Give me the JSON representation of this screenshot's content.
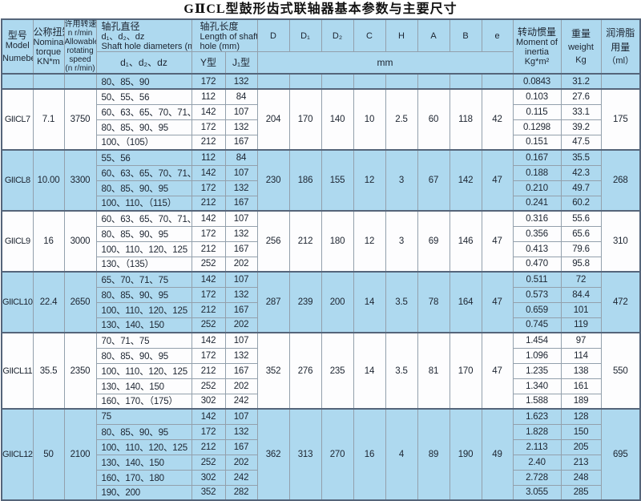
{
  "title": "GⅡCL型鼓形齿式联轴器基本参数与主要尺寸",
  "header": {
    "model": {
      "zh": "型号",
      "en1": "Model",
      "en2": "Numeber"
    },
    "torque": {
      "zh": "公称扭矩",
      "en1": "Nominal",
      "en2": "torque",
      "unit": "KN*m"
    },
    "speed": {
      "zh": "许用转速",
      "l2": "n r/min",
      "l3": "Allowable",
      "l4": "rotating",
      "l5": "speed",
      "l6": "(n r/min)"
    },
    "diameters": {
      "zh": "轴孔直径",
      "sub": "d₁、d₂、dz",
      "en": "Shaft hole diameters (mm)",
      "subrow": "d₁、d₂、dz"
    },
    "length": {
      "zh": "轴孔长度",
      "en1": "Length of shaft",
      "en2": "hole (mm)",
      "y": "Y型",
      "j": "J₁型"
    },
    "dims": [
      "D",
      "D₁",
      "D₂",
      "C",
      "H",
      "A",
      "B",
      "e"
    ],
    "mm": "mm",
    "inertia": {
      "zh": "转动惯量",
      "en1": "Moment of",
      "en2": "inertia",
      "unit": "Kg*m²"
    },
    "weight": {
      "zh": "重量",
      "en": "weight",
      "unit": "Kg"
    },
    "grease": {
      "zh": "润滑脂",
      "zh2": "用量",
      "unit": "（ml）"
    }
  },
  "groups": [
    {
      "model": "",
      "torque": "",
      "speed": "",
      "D": "",
      "D1": "",
      "D2": "",
      "C": "",
      "H": "",
      "A": "",
      "B": "",
      "e": "",
      "grease": "",
      "shaded": true,
      "rows": [
        {
          "d": "80、85、90",
          "y": "172",
          "j": "132",
          "inertia": "0.0843",
          "weight": "31.2"
        }
      ]
    },
    {
      "model": "GIICL7",
      "torque": "7.1",
      "speed": "3750",
      "D": "204",
      "D1": "170",
      "D2": "140",
      "C": "10",
      "H": "2.5",
      "A": "60",
      "B": "118",
      "e": "42",
      "grease": "175",
      "shaded": false,
      "rows": [
        {
          "d": "50、55、56",
          "y": "112",
          "j": "84",
          "inertia": "0.103",
          "weight": "27.6"
        },
        {
          "d": "60、63、65、70、71、75",
          "y": "142",
          "j": "107",
          "inertia": "0.115",
          "weight": "33.1"
        },
        {
          "d": "80、85、90、95",
          "y": "172",
          "j": "132",
          "inertia": "0.1298",
          "weight": "39.2"
        },
        {
          "d": "100、（105）",
          "y": "212",
          "j": "167",
          "inertia": "0.151",
          "weight": "47.5"
        }
      ]
    },
    {
      "model": "GIICL8",
      "torque": "10.00",
      "speed": "3300",
      "D": "230",
      "D1": "186",
      "D2": "155",
      "C": "12",
      "H": "3",
      "A": "67",
      "B": "142",
      "e": "47",
      "grease": "268",
      "shaded": true,
      "rows": [
        {
          "d": "55、56",
          "y": "112",
          "j": "84",
          "inertia": "0.167",
          "weight": "35.5"
        },
        {
          "d": "60、63、65、70、71、75",
          "y": "142",
          "j": "107",
          "inertia": "0.188",
          "weight": "42.3"
        },
        {
          "d": "80、85、90、95",
          "y": "172",
          "j": "132",
          "inertia": "0.210",
          "weight": "49.7"
        },
        {
          "d": "100、110、（115）",
          "y": "212",
          "j": "167",
          "inertia": "0.241",
          "weight": "60.2"
        }
      ]
    },
    {
      "model": "GIICL9",
      "torque": "16",
      "speed": "3000",
      "D": "256",
      "D1": "212",
      "D2": "180",
      "C": "12",
      "H": "3",
      "A": "69",
      "B": "146",
      "e": "47",
      "grease": "310",
      "shaded": false,
      "rows": [
        {
          "d": "60、63、65、70、71、75",
          "y": "142",
          "j": "107",
          "inertia": "0.316",
          "weight": "55.6"
        },
        {
          "d": "80、85、90、95",
          "y": "172",
          "j": "132",
          "inertia": "0.356",
          "weight": "65.6"
        },
        {
          "d": "100、110、120、125",
          "y": "212",
          "j": "167",
          "inertia": "0.413",
          "weight": "79.6"
        },
        {
          "d": "130、（135）",
          "y": "252",
          "j": "202",
          "inertia": "0.470",
          "weight": "95.8"
        }
      ]
    },
    {
      "model": "GIICL10",
      "torque": "22.4",
      "speed": "2650",
      "D": "287",
      "D1": "239",
      "D2": "200",
      "C": "14",
      "H": "3.5",
      "A": "78",
      "B": "164",
      "e": "47",
      "grease": "472",
      "shaded": true,
      "rows": [
        {
          "d": "65、70、71、75",
          "y": "142",
          "j": "107",
          "inertia": "0.511",
          "weight": "72"
        },
        {
          "d": "80、85、90、95",
          "y": "172",
          "j": "132",
          "inertia": "0.573",
          "weight": "84.4"
        },
        {
          "d": "100、110、120、125",
          "y": "212",
          "j": "167",
          "inertia": "0.659",
          "weight": "101"
        },
        {
          "d": "130、140、150",
          "y": "252",
          "j": "202",
          "inertia": "0.745",
          "weight": "119"
        }
      ]
    },
    {
      "model": "GIICL11",
      "torque": "35.5",
      "speed": "2350",
      "D": "352",
      "D1": "276",
      "D2": "235",
      "C": "14",
      "H": "3.5",
      "A": "81",
      "B": "170",
      "e": "47",
      "grease": "550",
      "shaded": false,
      "rows": [
        {
          "d": "70、71、75",
          "y": "142",
          "j": "107",
          "inertia": "1.454",
          "weight": "97"
        },
        {
          "d": "80、85、90、95",
          "y": "172",
          "j": "132",
          "inertia": "1.096",
          "weight": "114"
        },
        {
          "d": "100、110、120、125",
          "y": "212",
          "j": "167",
          "inertia": "1.235",
          "weight": "138"
        },
        {
          "d": "130、140、150",
          "y": "252",
          "j": "202",
          "inertia": "1.340",
          "weight": "161"
        },
        {
          "d": "160、170、（175）",
          "y": "302",
          "j": "242",
          "inertia": "1.588",
          "weight": "189"
        }
      ]
    },
    {
      "model": "GIICL12",
      "torque": "50",
      "speed": "2100",
      "D": "362",
      "D1": "313",
      "D2": "270",
      "C": "16",
      "H": "4",
      "A": "89",
      "B": "190",
      "e": "49",
      "grease": "695",
      "shaded": true,
      "rows": [
        {
          "d": "75",
          "y": "142",
          "j": "107",
          "inertia": "1.623",
          "weight": "128"
        },
        {
          "d": "80、85、90、95",
          "y": "172",
          "j": "132",
          "inertia": "1.828",
          "weight": "150"
        },
        {
          "d": "100、110、120、125",
          "y": "212",
          "j": "167",
          "inertia": "2.113",
          "weight": "205"
        },
        {
          "d": "130、140、150",
          "y": "252",
          "j": "202",
          "inertia": "2.40",
          "weight": "213"
        },
        {
          "d": "160、170、180",
          "y": "302",
          "j": "242",
          "inertia": "2.728",
          "weight": "248"
        },
        {
          "d": "190、200",
          "y": "352",
          "j": "282",
          "inertia": "3.055",
          "weight": "285"
        }
      ]
    }
  ]
}
